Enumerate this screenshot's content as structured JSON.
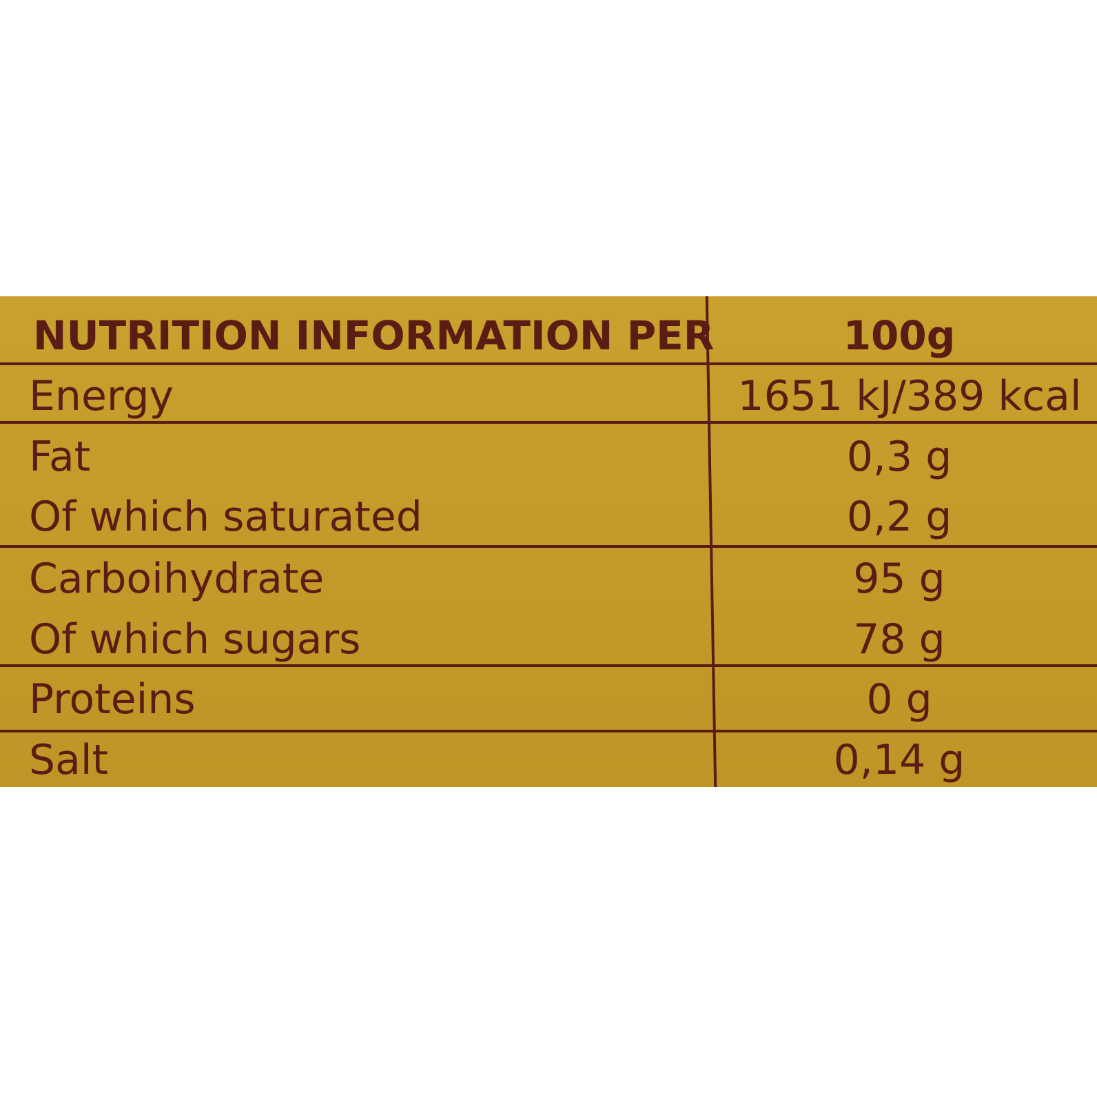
{
  "table": {
    "header": [
      "NUTRITION INFORMATION PER",
      "100g"
    ],
    "rows": [
      [
        "Energy",
        "1651 kJ/389 kcal"
      ],
      [
        "Fat",
        "0,3 g"
      ],
      [
        "Of which saturated",
        "0,2 g"
      ],
      [
        "Carboihydrate",
        "95 g"
      ],
      [
        "Of which sugars",
        "78 g"
      ],
      [
        "Proteins",
        "0 g"
      ],
      [
        "Salt",
        "0,14 g"
      ]
    ]
  }
}
